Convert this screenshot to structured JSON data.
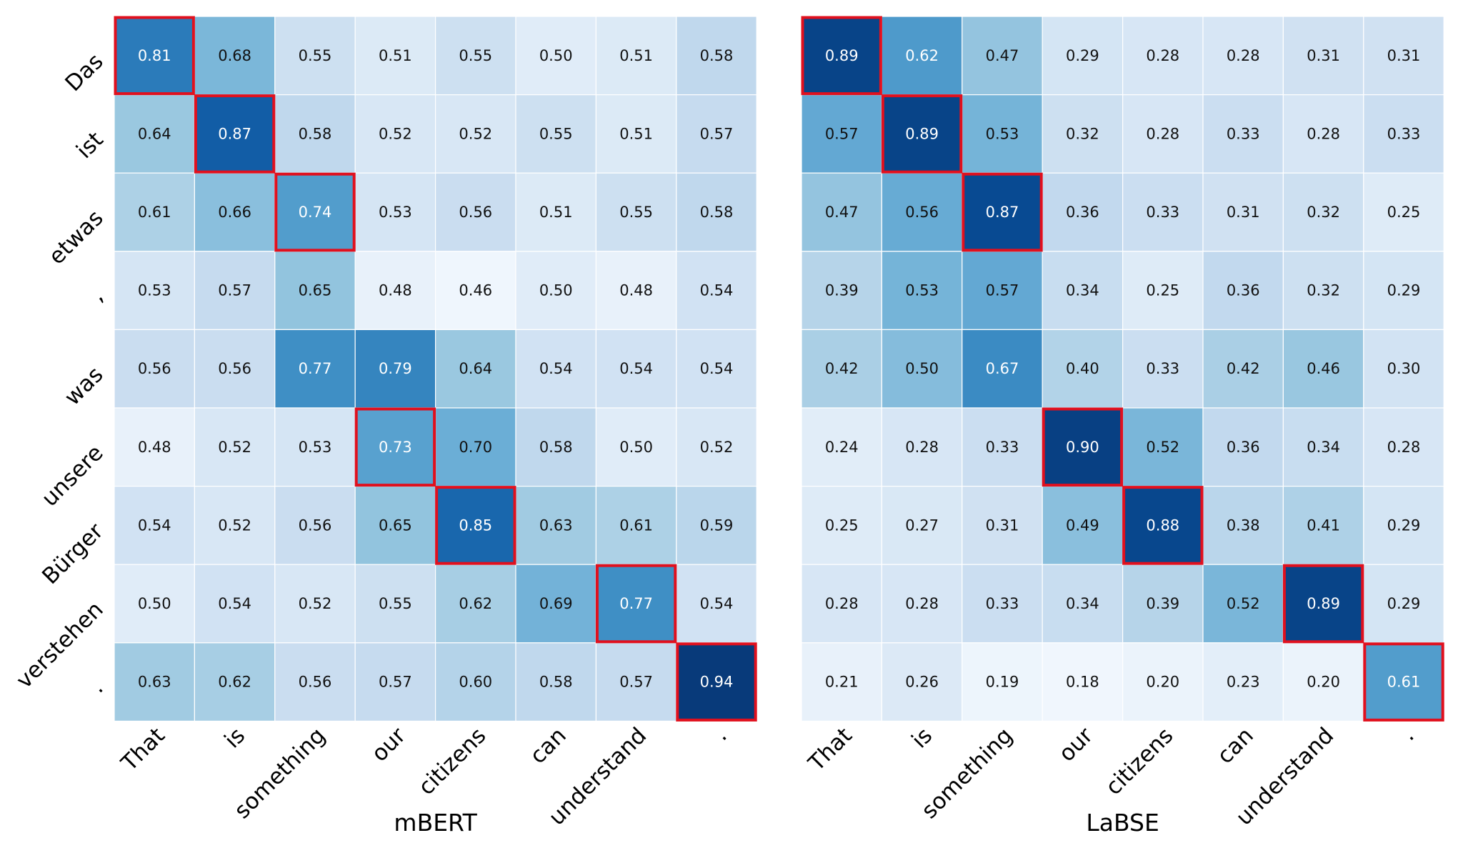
{
  "chart_data": [
    {
      "type": "heatmap",
      "title": "mBERT",
      "rows": [
        "Das",
        "ist",
        "etwas",
        ",",
        "was",
        "unsere",
        "Bürger",
        "verstehen",
        "."
      ],
      "columns": [
        "That",
        "is",
        "something",
        "our",
        "citizens",
        "can",
        "understand",
        "."
      ],
      "values": [
        [
          0.81,
          0.68,
          0.55,
          0.51,
          0.55,
          0.5,
          0.51,
          0.58
        ],
        [
          0.64,
          0.87,
          0.58,
          0.52,
          0.52,
          0.55,
          0.51,
          0.57
        ],
        [
          0.61,
          0.66,
          0.74,
          0.53,
          0.56,
          0.51,
          0.55,
          0.58
        ],
        [
          0.53,
          0.57,
          0.65,
          0.48,
          0.46,
          0.5,
          0.48,
          0.54
        ],
        [
          0.56,
          0.56,
          0.77,
          0.79,
          0.64,
          0.54,
          0.54,
          0.54
        ],
        [
          0.48,
          0.52,
          0.53,
          0.73,
          0.7,
          0.58,
          0.5,
          0.52
        ],
        [
          0.54,
          0.52,
          0.56,
          0.65,
          0.85,
          0.63,
          0.61,
          0.59
        ],
        [
          0.5,
          0.54,
          0.52,
          0.55,
          0.62,
          0.69,
          0.77,
          0.54
        ],
        [
          0.63,
          0.62,
          0.56,
          0.57,
          0.6,
          0.58,
          0.57,
          0.94
        ]
      ],
      "highlighted_cells": [
        [
          0,
          0
        ],
        [
          1,
          1
        ],
        [
          2,
          2
        ],
        [
          5,
          3
        ],
        [
          6,
          4
        ],
        [
          7,
          6
        ],
        [
          8,
          7
        ]
      ],
      "colormap": "Blues",
      "vmin": 0.44,
      "vmax": 0.96
    },
    {
      "type": "heatmap",
      "title": "LaBSE",
      "rows": [
        "Das",
        "ist",
        "etwas",
        ",",
        "was",
        "unsere",
        "Bürger",
        "verstehen",
        "."
      ],
      "columns": [
        "That",
        "is",
        "something",
        "our",
        "citizens",
        "can",
        "understand",
        "."
      ],
      "values": [
        [
          0.89,
          0.62,
          0.47,
          0.29,
          0.28,
          0.28,
          0.31,
          0.31
        ],
        [
          0.57,
          0.89,
          0.53,
          0.32,
          0.28,
          0.33,
          0.28,
          0.33
        ],
        [
          0.47,
          0.56,
          0.87,
          0.36,
          0.33,
          0.31,
          0.32,
          0.25
        ],
        [
          0.39,
          0.53,
          0.57,
          0.34,
          0.25,
          0.36,
          0.32,
          0.29
        ],
        [
          0.42,
          0.5,
          0.67,
          0.4,
          0.33,
          0.42,
          0.46,
          0.3
        ],
        [
          0.24,
          0.28,
          0.33,
          0.9,
          0.52,
          0.36,
          0.34,
          0.28
        ],
        [
          0.25,
          0.27,
          0.31,
          0.49,
          0.88,
          0.38,
          0.41,
          0.29
        ],
        [
          0.28,
          0.28,
          0.33,
          0.34,
          0.39,
          0.52,
          0.89,
          0.29
        ],
        [
          0.21,
          0.26,
          0.19,
          0.18,
          0.2,
          0.23,
          0.2,
          0.61
        ]
      ],
      "highlighted_cells": [
        [
          0,
          0
        ],
        [
          1,
          1
        ],
        [
          2,
          2
        ],
        [
          5,
          3
        ],
        [
          6,
          4
        ],
        [
          7,
          6
        ],
        [
          8,
          7
        ]
      ],
      "colormap": "Blues",
      "vmin": 0.15,
      "vmax": 0.95
    }
  ],
  "colors": {
    "highlight": "#e0101e",
    "cell_border": "#ffffff",
    "label": "#000000",
    "text_dark": "#111111",
    "text_light": "#ffffff"
  }
}
